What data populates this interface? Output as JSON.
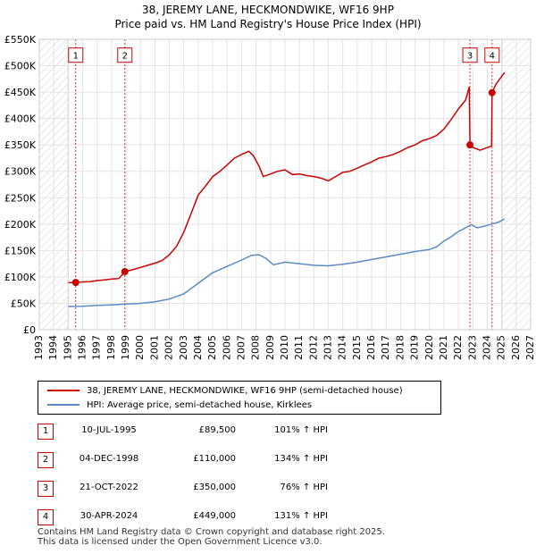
{
  "chart_data": {
    "type": "line",
    "title": "38, JEREMY LANE, HECKMONDWIKE, WF16 9HP",
    "subtitle": "Price paid vs. HM Land Registry's House Price Index (HPI)",
    "xlim": [
      1993,
      2027
    ],
    "ylim": [
      0,
      550000
    ],
    "x_ticks": [
      "1993",
      "1994",
      "1995",
      "1996",
      "1997",
      "1998",
      "1999",
      "2000",
      "2001",
      "2002",
      "2003",
      "2004",
      "2005",
      "2006",
      "2007",
      "2008",
      "2009",
      "2010",
      "2011",
      "2012",
      "2013",
      "2014",
      "2015",
      "2016",
      "2017",
      "2018",
      "2019",
      "2020",
      "2021",
      "2022",
      "2023",
      "2024",
      "2025",
      "2026",
      "2027"
    ],
    "y_ticks": [
      {
        "value": 0,
        "label": "£0"
      },
      {
        "value": 50000,
        "label": "£50K"
      },
      {
        "value": 100000,
        "label": "£100K"
      },
      {
        "value": 150000,
        "label": "£150K"
      },
      {
        "value": 200000,
        "label": "£200K"
      },
      {
        "value": 250000,
        "label": "£250K"
      },
      {
        "value": 300000,
        "label": "£300K"
      },
      {
        "value": 350000,
        "label": "£350K"
      },
      {
        "value": 400000,
        "label": "£400K"
      },
      {
        "value": 450000,
        "label": "£450K"
      },
      {
        "value": 500000,
        "label": "£500K"
      },
      {
        "value": 550000,
        "label": "£550K"
      }
    ],
    "shaded_ranges": [
      [
        1993,
        1995.0
      ],
      [
        2025.0,
        2027
      ]
    ],
    "series": [
      {
        "name": "38, JEREMY LANE, HECKMONDWIKE, WF16 9HP (semi-detached house)",
        "color": "#cc0000",
        "points": [
          [
            1995.0,
            89000
          ],
          [
            1995.52,
            89500
          ],
          [
            1996.0,
            90500
          ],
          [
            1996.5,
            91000
          ],
          [
            1997.0,
            93000
          ],
          [
            1997.5,
            94500
          ],
          [
            1998.0,
            96000
          ],
          [
            1998.5,
            97000
          ],
          [
            1998.92,
            110000
          ],
          [
            1999.5,
            114000
          ],
          [
            2000.0,
            118000
          ],
          [
            2000.5,
            122000
          ],
          [
            2001.0,
            126000
          ],
          [
            2001.5,
            131000
          ],
          [
            2002.0,
            142000
          ],
          [
            2002.5,
            158000
          ],
          [
            2003.0,
            185000
          ],
          [
            2003.5,
            220000
          ],
          [
            2004.0,
            255000
          ],
          [
            2004.5,
            272000
          ],
          [
            2005.0,
            290000
          ],
          [
            2005.5,
            300000
          ],
          [
            2006.0,
            312000
          ],
          [
            2006.5,
            325000
          ],
          [
            2007.0,
            332000
          ],
          [
            2007.5,
            338000
          ],
          [
            2007.8,
            330000
          ],
          [
            2008.2,
            310000
          ],
          [
            2008.5,
            290000
          ],
          [
            2009.0,
            295000
          ],
          [
            2009.5,
            300000
          ],
          [
            2010.0,
            303000
          ],
          [
            2010.5,
            294000
          ],
          [
            2011.0,
            295000
          ],
          [
            2011.5,
            292000
          ],
          [
            2012.0,
            290000
          ],
          [
            2012.5,
            287000
          ],
          [
            2013.0,
            282000
          ],
          [
            2013.5,
            290000
          ],
          [
            2014.0,
            298000
          ],
          [
            2014.5,
            300000
          ],
          [
            2015.0,
            306000
          ],
          [
            2015.5,
            312000
          ],
          [
            2016.0,
            318000
          ],
          [
            2016.5,
            325000
          ],
          [
            2017.0,
            328000
          ],
          [
            2017.5,
            332000
          ],
          [
            2018.0,
            338000
          ],
          [
            2018.5,
            345000
          ],
          [
            2019.0,
            350000
          ],
          [
            2019.5,
            358000
          ],
          [
            2020.0,
            362000
          ],
          [
            2020.5,
            368000
          ],
          [
            2021.0,
            380000
          ],
          [
            2021.5,
            398000
          ],
          [
            2022.0,
            418000
          ],
          [
            2022.5,
            435000
          ],
          [
            2022.75,
            460000
          ],
          [
            2022.8,
            350000
          ],
          [
            2023.0,
            345000
          ],
          [
            2023.5,
            340000
          ],
          [
            2024.0,
            345000
          ],
          [
            2024.3,
            348000
          ],
          [
            2024.33,
            449000
          ],
          [
            2024.6,
            465000
          ],
          [
            2025.0,
            480000
          ],
          [
            2025.2,
            487000
          ]
        ]
      },
      {
        "name": "HPI: Average price, semi-detached house, Kirklees",
        "color": "#5b8ac6",
        "points": [
          [
            1995.0,
            44000
          ],
          [
            1996.0,
            44500
          ],
          [
            1997.0,
            46000
          ],
          [
            1998.0,
            47000
          ],
          [
            1999.0,
            48500
          ],
          [
            2000.0,
            50000
          ],
          [
            2001.0,
            53000
          ],
          [
            2002.0,
            58000
          ],
          [
            2003.0,
            68000
          ],
          [
            2004.0,
            88000
          ],
          [
            2005.0,
            108000
          ],
          [
            2006.0,
            120000
          ],
          [
            2007.0,
            132000
          ],
          [
            2007.7,
            141000
          ],
          [
            2008.2,
            142000
          ],
          [
            2008.7,
            135000
          ],
          [
            2009.2,
            123000
          ],
          [
            2010.0,
            128000
          ],
          [
            2011.0,
            125000
          ],
          [
            2012.0,
            122000
          ],
          [
            2013.0,
            121000
          ],
          [
            2014.0,
            124000
          ],
          [
            2015.0,
            128000
          ],
          [
            2016.0,
            133000
          ],
          [
            2017.0,
            138000
          ],
          [
            2018.0,
            143000
          ],
          [
            2019.0,
            148000
          ],
          [
            2020.0,
            152000
          ],
          [
            2020.5,
            157000
          ],
          [
            2021.0,
            168000
          ],
          [
            2021.5,
            176000
          ],
          [
            2022.0,
            186000
          ],
          [
            2022.5,
            193000
          ],
          [
            2022.9,
            199000
          ],
          [
            2023.3,
            193000
          ],
          [
            2023.8,
            196000
          ],
          [
            2024.3,
            200000
          ],
          [
            2024.8,
            204000
          ],
          [
            2025.2,
            210000
          ]
        ]
      }
    ],
    "sales": [
      {
        "num": "1",
        "x": 1995.52,
        "price": 89500
      },
      {
        "num": "2",
        "x": 1998.92,
        "price": 110000
      },
      {
        "num": "3",
        "x": 2022.8,
        "price": 350000
      },
      {
        "num": "4",
        "x": 2024.33,
        "price": 449000
      }
    ],
    "marker_label_y": 520000
  },
  "legend": {
    "property_label": "38, JEREMY LANE, HECKMONDWIKE, WF16 9HP (semi-detached house)",
    "property_color": "#cc0000",
    "hpi_label": "HPI: Average price, semi-detached house, Kirklees",
    "hpi_color": "#5b8ac6"
  },
  "sales_table": [
    {
      "num": "1",
      "date": "10-JUL-1995",
      "price": "£89,500",
      "hpi": "101% ↑ HPI"
    },
    {
      "num": "2",
      "date": "04-DEC-1998",
      "price": "£110,000",
      "hpi": "134% ↑ HPI"
    },
    {
      "num": "3",
      "date": "21-OCT-2022",
      "price": "£350,000",
      "hpi": "76% ↑ HPI"
    },
    {
      "num": "4",
      "date": "30-APR-2024",
      "price": "£449,000",
      "hpi": "131% ↑ HPI"
    }
  ],
  "footer": {
    "line1": "Contains HM Land Registry data © Crown copyright and database right 2025.",
    "line2": "This data is licensed under the Open Government Licence v3.0."
  }
}
